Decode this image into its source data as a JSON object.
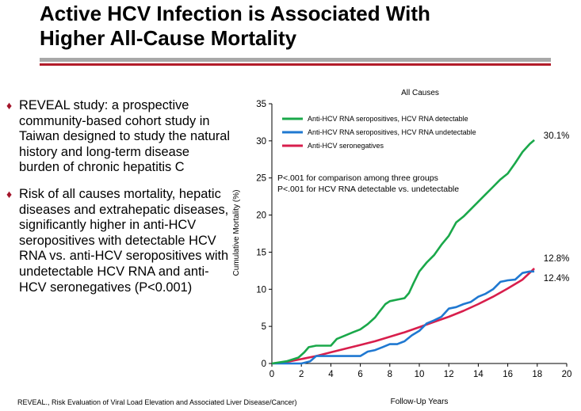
{
  "slide": {
    "title_line1": "Active HCV Infection is Associated With",
    "title_line2": "Higher All-Cause Mortality",
    "bullets": [
      "REVEAL study: a prospective community-based cohort study in Taiwan designed to study the natural history and long-term disease burden of chronic hepatitis C",
      "Risk of all causes mortality, hepatic diseases and extrahepatic diseases, significantly higher in anti-HCV seropositives with detectable HCV RNA vs. anti-HCV seropositives with undetectable HCV RNA and anti-HCV seronegatives (P<0.001)"
    ],
    "footnote": "REVEAL., Risk Evaluation of Viral Load Elevation and Associated Liver Disease/Cancer)",
    "colors": {
      "title_rule": "#b21c2a",
      "gray_rule": "#a8a8a8",
      "bullet_marker": "#a3142a"
    }
  },
  "chart_data": {
    "type": "line",
    "title": "All Causes",
    "xlabel": "Follow-Up Years",
    "ylabel": "Cumulative Mortality  (%)",
    "xlim": [
      0,
      20
    ],
    "ylim": [
      0,
      35
    ],
    "xticks": [
      0,
      2,
      4,
      6,
      8,
      10,
      12,
      14,
      16,
      18,
      20
    ],
    "yticks": [
      0,
      5,
      10,
      15,
      20,
      25,
      30,
      35
    ],
    "legend_position": "top-left",
    "annotations": [
      "P<.001 for comparison among three groups",
      "P<.001 for HCV RNA detectable vs. undetectable"
    ],
    "series": [
      {
        "name": "Anti-HCV RNA seropositives, HCV RNA detectable",
        "color": "#1aa84a",
        "end_label": "30.1%",
        "x": [
          0,
          1,
          1.8,
          2.2,
          2.5,
          3.0,
          3.5,
          4.0,
          4.4,
          5.0,
          5.5,
          6.0,
          6.5,
          7.0,
          7.3,
          7.7,
          8.0,
          8.5,
          9.0,
          9.3,
          9.6,
          10.0,
          10.5,
          11.0,
          11.5,
          12.0,
          12.5,
          13.0,
          13.5,
          14.0,
          14.5,
          15.0,
          15.5,
          16.0,
          16.5,
          17.0,
          17.5,
          17.8
        ],
        "values": [
          0,
          0.3,
          0.8,
          1.5,
          2.2,
          2.4,
          2.4,
          2.4,
          3.3,
          3.8,
          4.2,
          4.6,
          5.3,
          6.2,
          7.0,
          8.0,
          8.4,
          8.6,
          8.8,
          9.5,
          10.8,
          12.4,
          13.6,
          14.6,
          16.0,
          17.2,
          19.0,
          19.8,
          20.8,
          21.8,
          22.8,
          23.8,
          24.8,
          25.6,
          27.0,
          28.5,
          29.6,
          30.1
        ]
      },
      {
        "name": "Anti-HCV RNA seropositives, HCV RNA undetectable",
        "color": "#1f78d1",
        "end_label": "12.4%",
        "x": [
          0,
          1,
          2,
          2.6,
          3,
          4,
          5,
          6,
          6.5,
          7,
          7.5,
          8,
          8.5,
          9,
          9.5,
          10,
          10.5,
          11,
          11.5,
          12,
          12.5,
          13,
          13.5,
          14,
          14.5,
          15,
          15.5,
          16,
          16.5,
          17,
          17.5,
          17.8
        ],
        "values": [
          0,
          0,
          0,
          0.3,
          1.0,
          1.0,
          1.0,
          1.0,
          1.6,
          1.8,
          2.2,
          2.6,
          2.6,
          3.0,
          3.8,
          4.4,
          5.4,
          5.8,
          6.3,
          7.4,
          7.6,
          8.0,
          8.3,
          9.0,
          9.4,
          10.0,
          11.0,
          11.2,
          11.3,
          12.2,
          12.4,
          12.4
        ]
      },
      {
        "name": "Anti-HCV seronegatives",
        "color": "#d81e4c",
        "end_label": "12.8%",
        "x": [
          0,
          1,
          2,
          3,
          4,
          5,
          6,
          7,
          8,
          9,
          10,
          11,
          12,
          13,
          14,
          15,
          16,
          17,
          17.8
        ],
        "values": [
          0,
          0.2,
          0.6,
          1.0,
          1.5,
          2.0,
          2.5,
          3.0,
          3.6,
          4.2,
          4.9,
          5.6,
          6.3,
          7.1,
          8.0,
          9.0,
          10.1,
          11.3,
          12.8
        ]
      }
    ]
  }
}
